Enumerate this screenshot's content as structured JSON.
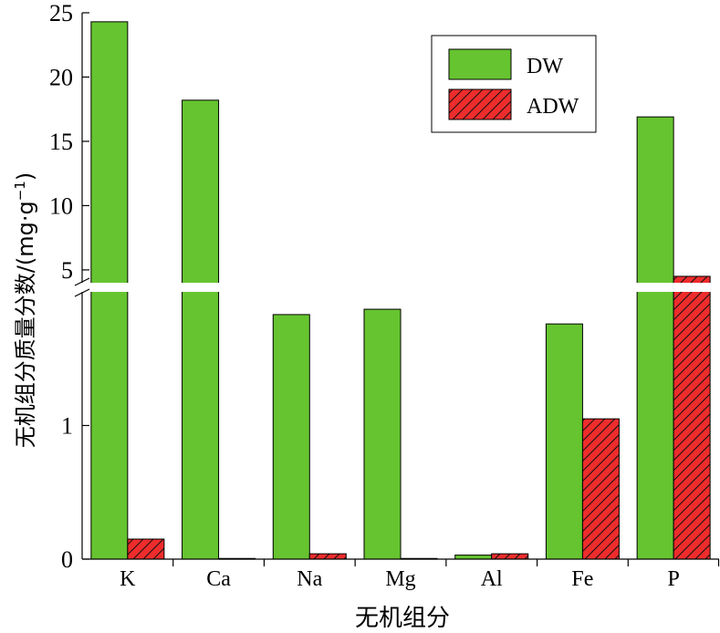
{
  "chart_data": {
    "type": "bar",
    "xlabel": "无机组分",
    "ylabel": "无机组分质量分数/(mg·g",
    "ylabel_sup": "−1",
    "ylabel_close": ")",
    "categories": [
      "K",
      "Ca",
      "Na",
      "Mg",
      "Al",
      "Fe",
      "P"
    ],
    "series": [
      {
        "name": "DW",
        "color": "#66c430",
        "pattern": "solid",
        "values": [
          24.3,
          18.2,
          1.83,
          1.87,
          0.03,
          1.76,
          16.9
        ]
      },
      {
        "name": "ADW",
        "color": "#ee2c2c",
        "pattern": "diagonal-hatch",
        "values": [
          0.15,
          0.005,
          0.04,
          0.005,
          0.04,
          1.05,
          4.5
        ]
      }
    ],
    "axis_break": {
      "between": [
        2,
        4
      ]
    },
    "y_lower": {
      "range": [
        0,
        2
      ],
      "ticks": [
        {
          "value": 0,
          "label": "0"
        },
        {
          "value": 1,
          "label": "1"
        }
      ]
    },
    "y_upper": {
      "range": [
        4,
        25
      ],
      "ticks": [
        {
          "value": 5,
          "label": "5"
        },
        {
          "value": 10,
          "label": "10"
        },
        {
          "value": 15,
          "label": "15"
        },
        {
          "value": 20,
          "label": "20"
        },
        {
          "value": 25,
          "label": "25"
        }
      ]
    },
    "grid": false,
    "legend_position": "top-right"
  }
}
